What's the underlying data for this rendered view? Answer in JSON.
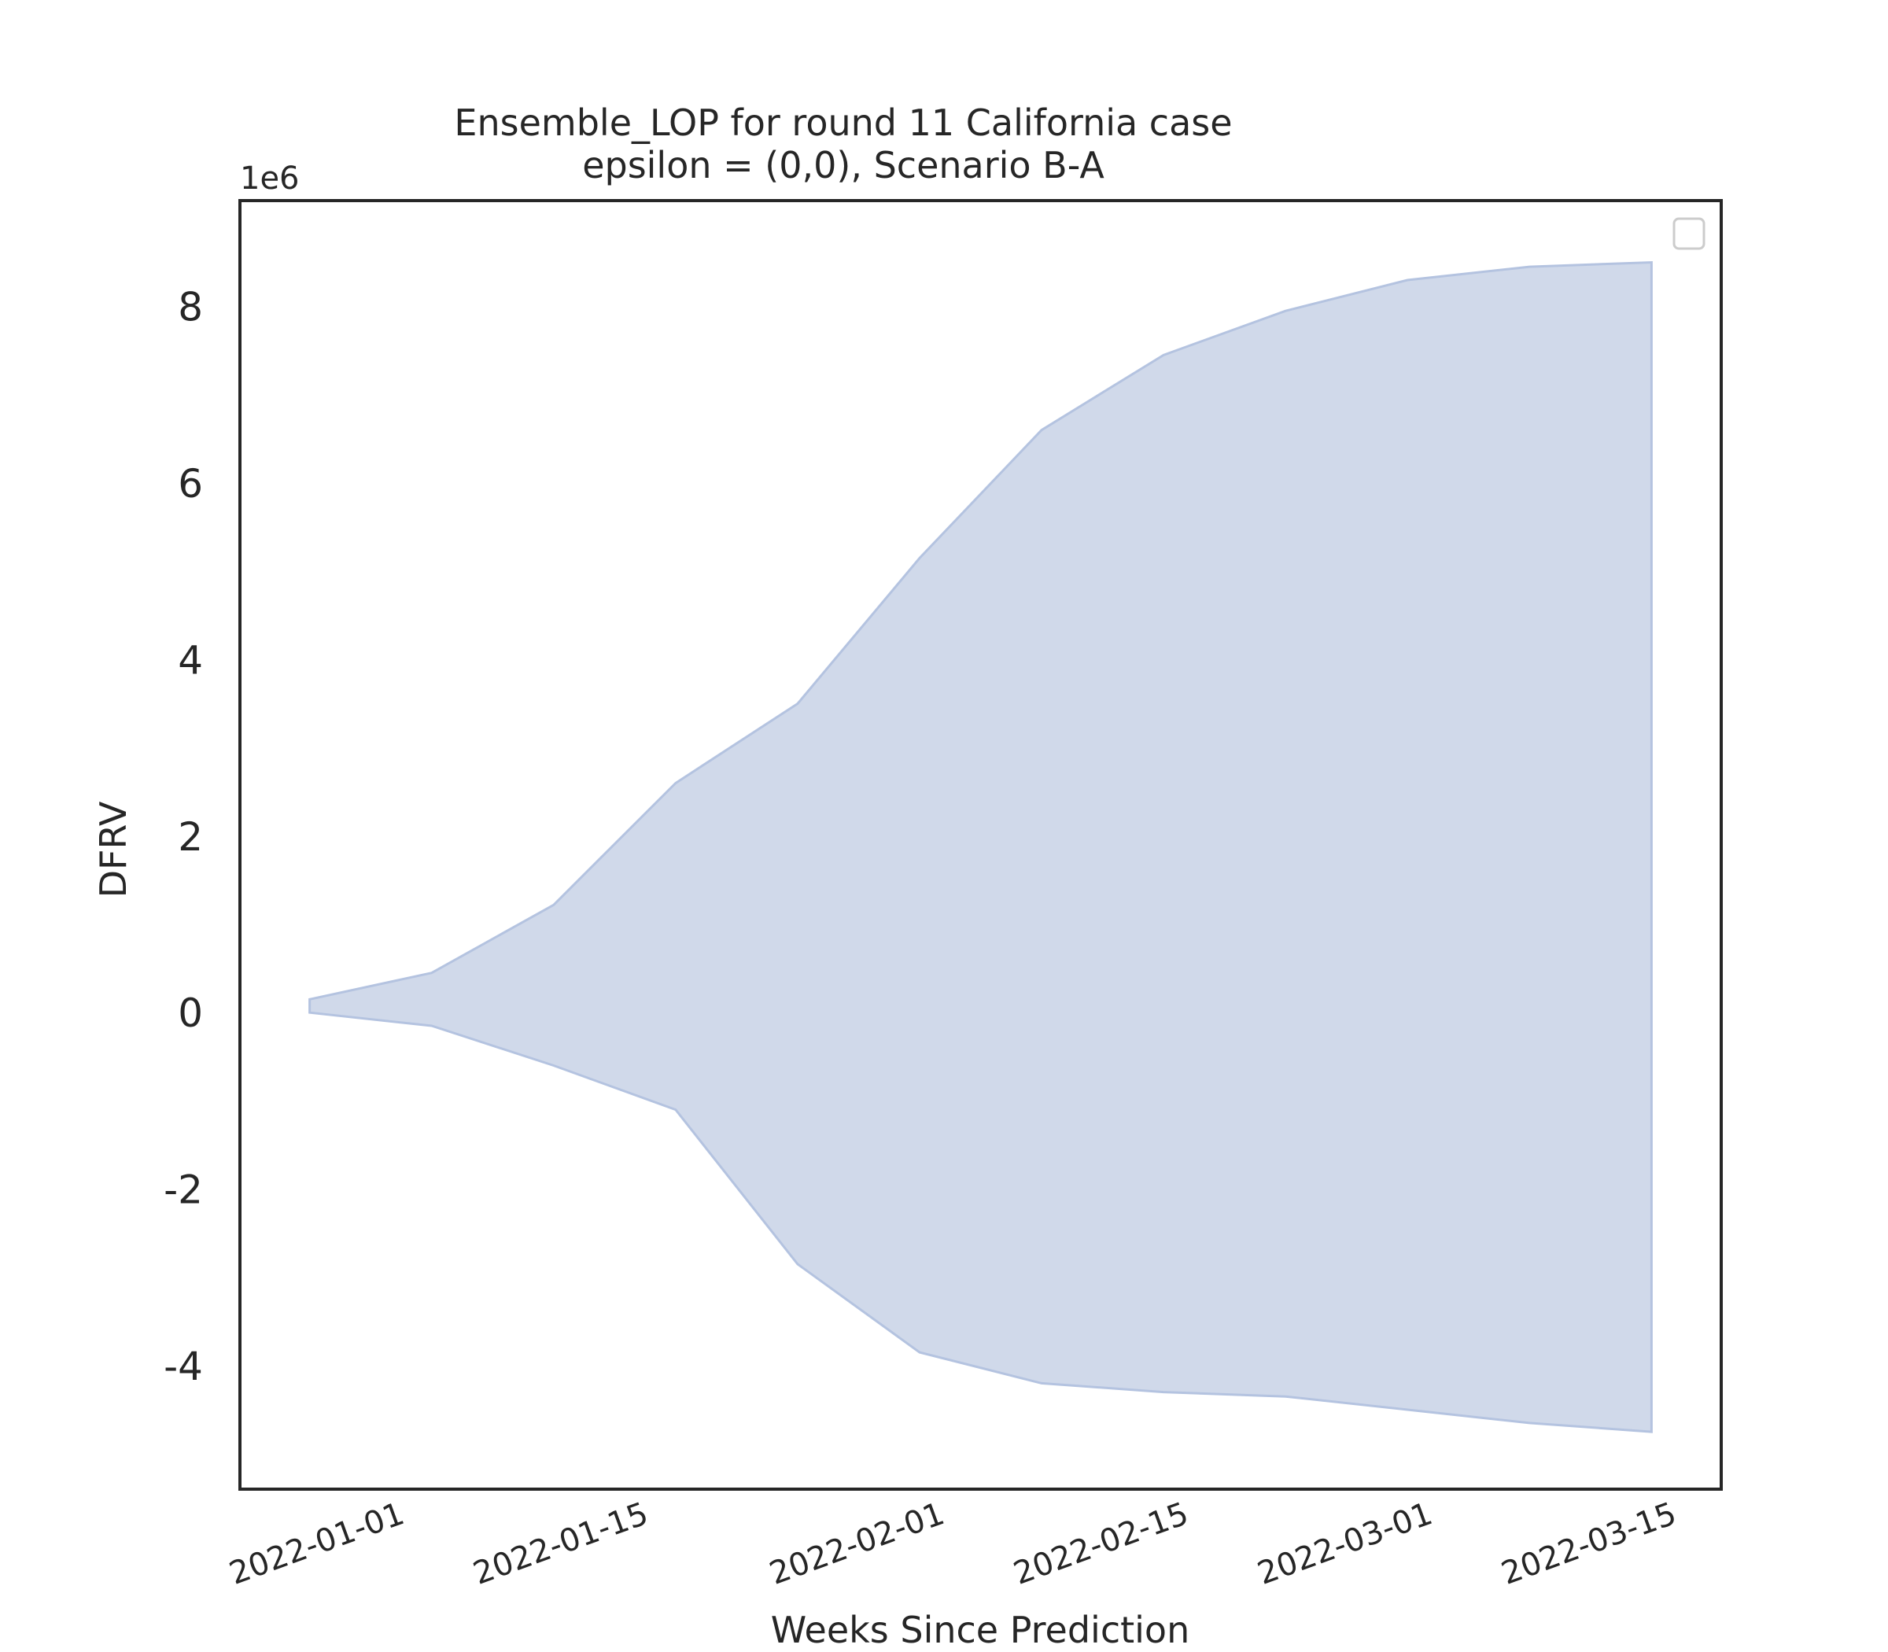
{
  "chart_data": {
    "type": "area",
    "title": "Ensemble_LOP for round 11 California case",
    "subtitle": "epsilon = (0,0), Scenario B-A",
    "xlabel": "Weeks Since Prediction",
    "ylabel": "DFRV",
    "y_offset_label": "1e6",
    "y_scale": 1000000,
    "x_ticks": [
      "2022-01-01",
      "2022-01-15",
      "2022-02-01",
      "2022-02-15",
      "2022-03-01",
      "2022-03-15"
    ],
    "y_ticks": [
      -4,
      -2,
      0,
      2,
      4,
      6,
      8
    ],
    "xlim": [
      "2021-12-23",
      "2022-03-18"
    ],
    "ylim": [
      -5.4,
      9.2
    ],
    "grid": false,
    "legend": "top-right (empty)",
    "fill_color": "#c8d2e6",
    "edge_color": "#b4c3e0",
    "series": [
      {
        "x": [
          "2021-12-27",
          "2022-01-03",
          "2022-01-10",
          "2022-01-17",
          "2022-01-24",
          "2022-01-31",
          "2022-02-07",
          "2022-02-14",
          "2022-02-21",
          "2022-02-28",
          "2022-03-07",
          "2022-03-14"
        ],
        "upper": [
          0.15,
          0.45,
          1.22,
          2.6,
          3.5,
          5.15,
          6.6,
          7.45,
          7.95,
          8.3,
          8.45,
          8.5
        ],
        "lower": [
          0.0,
          -0.15,
          -0.6,
          -1.1,
          -2.85,
          -3.85,
          -4.2,
          -4.3,
          -4.35,
          -4.5,
          -4.65,
          -4.75
        ]
      }
    ]
  }
}
